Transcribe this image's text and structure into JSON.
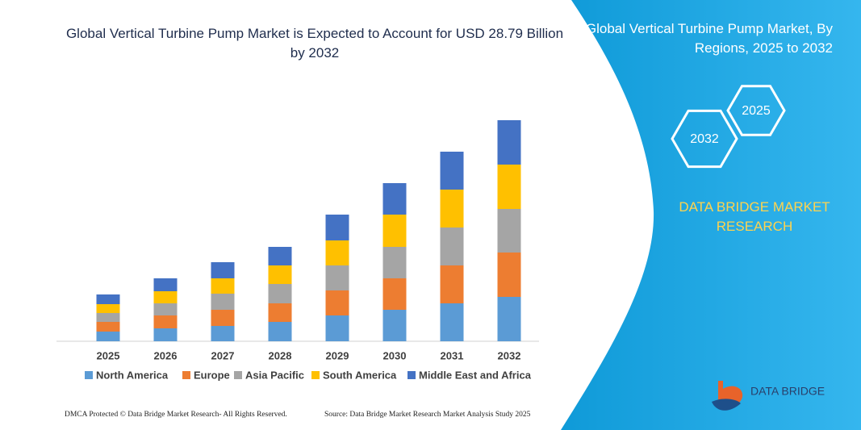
{
  "chart_data": {
    "type": "bar",
    "stacked": true,
    "title": "Global Vertical Turbine Pump Market is Expected to Account for USD 28.79 Billion by 2032",
    "categories": [
      "2025",
      "2026",
      "2027",
      "2028",
      "2029",
      "2030",
      "2031",
      "2032"
    ],
    "series": [
      {
        "name": "North America",
        "color": "#5b9bd5",
        "values": [
          12,
          16,
          19,
          24,
          32,
          39,
          47,
          55
        ]
      },
      {
        "name": "Europe",
        "color": "#ed7d31",
        "values": [
          12,
          16,
          20,
          23,
          31,
          39,
          47,
          55
        ]
      },
      {
        "name": "Asia Pacific",
        "color": "#a5a5a5",
        "values": [
          11,
          15,
          20,
          24,
          31,
          39,
          47,
          54
        ]
      },
      {
        "name": "South America",
        "color": "#ffc000",
        "values": [
          11,
          15,
          19,
          23,
          31,
          40,
          47,
          55
        ]
      },
      {
        "name": "Middle East and Africa",
        "color": "#4472c4",
        "values": [
          12,
          16,
          20,
          23,
          32,
          39,
          47,
          55
        ]
      }
    ]
  },
  "panel": {
    "title": "Global Vertical Turbine Pump Market, By Regions, 2025 to 2032",
    "hexagons": [
      "2025",
      "2032"
    ],
    "brand": "DATA BRIDGE MARKET RESEARCH"
  },
  "logo": {
    "text": "DATA BRIDGE"
  },
  "footer": {
    "left": "DMCA Protected © Data Bridge Market Research- All Rights Reserved.",
    "right": "Source: Data Bridge Market Research Market Analysis Study 2025"
  }
}
